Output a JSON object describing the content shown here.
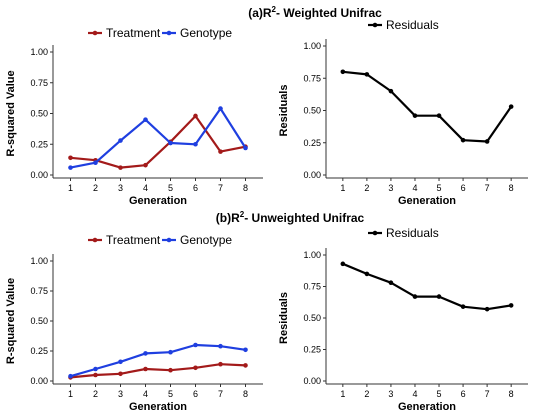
{
  "colors": {
    "treatment": "#a31a1a",
    "genotype": "#1f3fe0",
    "residuals": "#000000"
  },
  "sections": [
    {
      "title_prefix": "(a)R",
      "title_sup": "2",
      "title_suffix": "- Weighted Unifrac"
    },
    {
      "title_prefix": "(b)R",
      "title_sup": "2",
      "title_suffix": "- Unweighted Unifrac"
    }
  ],
  "chart_data": [
    {
      "type": "line",
      "panel": "a-left",
      "x": [
        1,
        2,
        3,
        4,
        5,
        6,
        7,
        8
      ],
      "xlabel": "Generation",
      "ylabel": "R-squared Value",
      "ylim": [
        0,
        1
      ],
      "yticks": [
        "0.00",
        "0.25",
        "0.50",
        "0.75",
        "1.00"
      ],
      "legend": "top",
      "series": [
        {
          "name": "Treatment",
          "color": "#a31a1a",
          "values": [
            0.14,
            0.12,
            0.06,
            0.08,
            0.27,
            0.48,
            0.19,
            0.23
          ]
        },
        {
          "name": "Genotype",
          "color": "#1f3fe0",
          "values": [
            0.06,
            0.1,
            0.28,
            0.45,
            0.26,
            0.25,
            0.54,
            0.22
          ]
        }
      ]
    },
    {
      "type": "line",
      "panel": "a-right",
      "x": [
        1,
        2,
        3,
        4,
        5,
        6,
        7,
        8
      ],
      "xlabel": "Generation",
      "ylabel": "Residuals",
      "ylim": [
        0,
        1
      ],
      "yticks": [
        "0.00",
        "0.25",
        "0.50",
        "0.75",
        "1.00"
      ],
      "legend": "top",
      "series": [
        {
          "name": "Residuals",
          "color": "#000000",
          "values": [
            0.8,
            0.78,
            0.65,
            0.46,
            0.46,
            0.27,
            0.26,
            0.53
          ]
        }
      ]
    },
    {
      "type": "line",
      "panel": "b-left",
      "x": [
        1,
        2,
        3,
        4,
        5,
        6,
        7,
        8
      ],
      "xlabel": "Generation",
      "ylabel": "R-squared Value",
      "ylim": [
        0,
        1
      ],
      "yticks": [
        "0.00",
        "0.25",
        "0.50",
        "0.75",
        "1.00"
      ],
      "legend": "top",
      "series": [
        {
          "name": "Treatment",
          "color": "#a31a1a",
          "values": [
            0.03,
            0.05,
            0.06,
            0.1,
            0.09,
            0.11,
            0.14,
            0.13
          ]
        },
        {
          "name": "Genotype",
          "color": "#1f3fe0",
          "values": [
            0.04,
            0.1,
            0.16,
            0.23,
            0.24,
            0.3,
            0.29,
            0.26
          ]
        }
      ]
    },
    {
      "type": "line",
      "panel": "b-right",
      "x": [
        1,
        2,
        3,
        4,
        5,
        6,
        7,
        8
      ],
      "xlabel": "Generation",
      "ylabel": "Residuals",
      "ylim": [
        0,
        1
      ],
      "yticks": [
        "0.00",
        "0.25",
        "0.50",
        "0.75",
        "1.00"
      ],
      "legend": "top",
      "series": [
        {
          "name": "Residuals",
          "color": "#000000",
          "values": [
            0.93,
            0.85,
            0.78,
            0.67,
            0.67,
            0.59,
            0.57,
            0.6
          ]
        }
      ]
    }
  ]
}
